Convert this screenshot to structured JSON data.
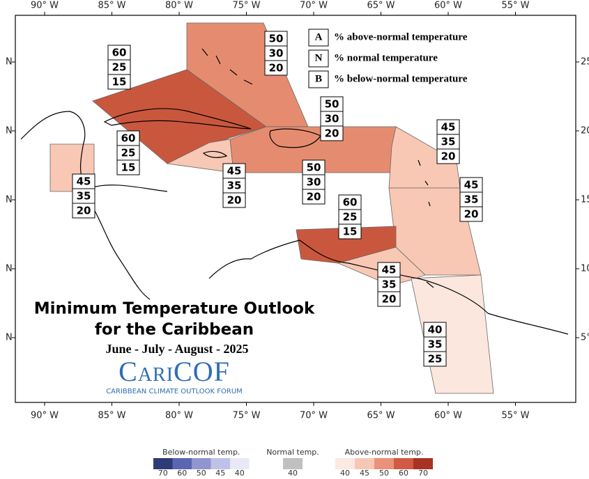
{
  "map": {
    "title": "Minimum Temperature Outlook",
    "subtitle": "for the Caribbean",
    "season": "June - July - August - 2025",
    "logo": "CariCOF",
    "logo_caption": "CARIBBEAN CLIMATE OUTLOOK FORUM",
    "lon_labels": [
      "90° W",
      "85° W",
      "80° W",
      "75° W",
      "70° W",
      "65° W",
      "60° W",
      "55° W"
    ],
    "lat_labels_left": [
      "N",
      "N",
      "N",
      "N",
      "N"
    ],
    "lat_labels_right": [
      "25",
      "20",
      "15",
      "10",
      "5°"
    ],
    "key": [
      {
        "letter": "A",
        "text": "% above-normal temperature"
      },
      {
        "letter": "N",
        "text": "% normal temperature"
      },
      {
        "letter": "B",
        "text": "% below-normal temperature"
      }
    ],
    "regions": [
      {
        "above": 60,
        "normal": 25,
        "below": 15,
        "color": "#c9573e"
      },
      {
        "above": 50,
        "normal": 30,
        "below": 20,
        "color": "#e58c70"
      },
      {
        "above": 50,
        "normal": 30,
        "below": 20,
        "color": "#e58c70"
      },
      {
        "above": 45,
        "normal": 35,
        "below": 20,
        "color": "#f8c8b4"
      },
      {
        "above": 60,
        "normal": 25,
        "below": 15,
        "color": "#c9573e"
      },
      {
        "above": 45,
        "normal": 35,
        "below": 20,
        "color": "#f8c8b4"
      },
      {
        "above": 45,
        "normal": 35,
        "below": 20,
        "color": "#f8c8b4"
      },
      {
        "above": 50,
        "normal": 30,
        "below": 20,
        "color": "#e58c70"
      },
      {
        "above": 45,
        "normal": 35,
        "below": 20,
        "color": "#f8c8b4"
      },
      {
        "above": 60,
        "normal": 25,
        "below": 15,
        "color": "#c9573e"
      },
      {
        "above": 45,
        "normal": 35,
        "below": 20,
        "color": "#f8c8b4"
      },
      {
        "above": 40,
        "normal": 35,
        "below": 25,
        "color": "#fce7de"
      }
    ],
    "color_legend": {
      "below": {
        "title": "Below-normal temp.",
        "levels": [
          {
            "value": 70,
            "color": "#2f3b77"
          },
          {
            "value": 60,
            "color": "#5b66b2"
          },
          {
            "value": 50,
            "color": "#8f96d0"
          },
          {
            "value": 45,
            "color": "#bec2e7"
          },
          {
            "value": 40,
            "color": "#e7e9f6"
          }
        ]
      },
      "normal": {
        "title": "Normal temp.",
        "levels": [
          {
            "value": 40,
            "color": "#c0c0c0"
          }
        ]
      },
      "above": {
        "title": "Above-normal temp.",
        "levels": [
          {
            "value": 40,
            "color": "#fce9e1"
          },
          {
            "value": 45,
            "color": "#f7c7b5"
          },
          {
            "value": 50,
            "color": "#e9917a"
          },
          {
            "value": 60,
            "color": "#d15a45"
          },
          {
            "value": 70,
            "color": "#a83223"
          }
        ]
      }
    }
  }
}
